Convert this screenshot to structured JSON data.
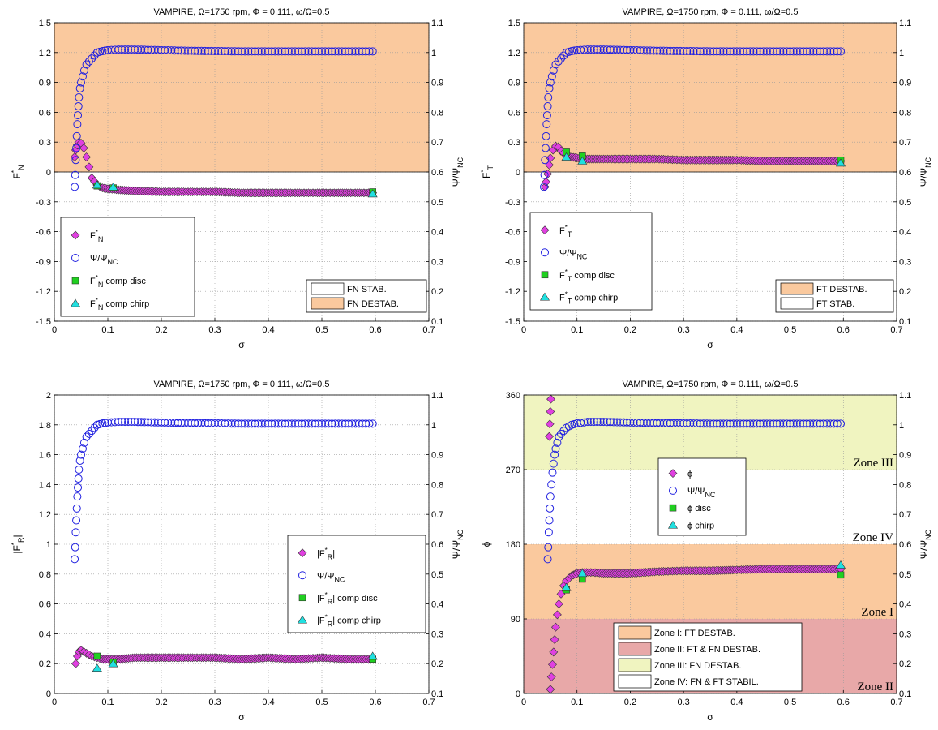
{
  "chart_data": [
    {
      "type": "scatter",
      "title": "VAMPIRE, Ω=1750 rpm, Φ = 0.111, ω/Ω=0.5",
      "xlabel": "σ",
      "ylabel": "F*N",
      "y2label": "Ψ/ΨNC",
      "xlim": [
        0,
        0.7
      ],
      "ylim": [
        -1.5,
        1.5
      ],
      "y2lim": [
        0.1,
        1.1
      ],
      "xticks": [
        "0",
        "0.1",
        "0.2",
        "0.3",
        "0.4",
        "0.5",
        "0.6",
        "0.7"
      ],
      "yticks": [
        "-1.5",
        "-1.2",
        "-0.9",
        "-0.6",
        "-0.3",
        "0",
        "0.3",
        "0.6",
        "0.9",
        "1.2",
        "1.5"
      ],
      "y2ticks": [
        "0.1",
        "0.2",
        "0.3",
        "0.4",
        "0.5",
        "0.6",
        "0.7",
        "0.8",
        "0.9",
        "1",
        "1.1"
      ],
      "grid": true,
      "regions": [
        {
          "label": "FN STAB.",
          "y_from": -1.5,
          "y_to": 0,
          "color": "#ffffff"
        },
        {
          "label": "FN DESTAB.",
          "y_from": 0,
          "y_to": 1.5,
          "color": "#fac99e"
        }
      ],
      "region_legend_placement": "bottom-right",
      "legend_placement": "bottom-left",
      "series": [
        {
          "name": "F*N",
          "marker": "diamond",
          "color": "#e040e0",
          "axis": "left",
          "x": [
            0.038,
            0.04,
            0.043,
            0.046,
            0.05,
            0.055,
            0.06,
            0.065,
            0.07,
            0.08,
            0.09,
            0.1,
            0.12,
            0.15,
            0.2,
            0.25,
            0.3,
            0.35,
            0.4,
            0.45,
            0.5,
            0.55,
            0.595
          ],
          "y": [
            0.15,
            0.22,
            0.27,
            0.3,
            0.29,
            0.24,
            0.15,
            0.05,
            -0.06,
            -0.13,
            -0.16,
            -0.17,
            -0.18,
            -0.19,
            -0.2,
            -0.2,
            -0.2,
            -0.21,
            -0.21,
            -0.21,
            -0.21,
            -0.21,
            -0.21
          ]
        },
        {
          "name": "Ψ/ΨNC",
          "marker": "circle",
          "color": "#2020e0",
          "axis": "right",
          "x": [
            0.038,
            0.039,
            0.04,
            0.041,
            0.042,
            0.043,
            0.044,
            0.045,
            0.046,
            0.048,
            0.05,
            0.053,
            0.056,
            0.06,
            0.065,
            0.07,
            0.075,
            0.08,
            0.09,
            0.1,
            0.12,
            0.15,
            0.2,
            0.25,
            0.3,
            0.35,
            0.4,
            0.45,
            0.5,
            0.55,
            0.595
          ],
          "y": [
            0.55,
            0.59,
            0.64,
            0.68,
            0.72,
            0.76,
            0.79,
            0.82,
            0.85,
            0.88,
            0.9,
            0.92,
            0.94,
            0.96,
            0.97,
            0.98,
            0.99,
            1.0,
            1.005,
            1.008,
            1.01,
            1.01,
            1.008,
            1.006,
            1.005,
            1.004,
            1.004,
            1.004,
            1.004,
            1.004,
            1.004
          ]
        },
        {
          "name": "F*N comp disc",
          "marker": "square",
          "color": "#20d020",
          "axis": "left",
          "x": [
            0.08,
            0.11,
            0.595
          ],
          "y": [
            -0.14,
            -0.16,
            -0.2
          ]
        },
        {
          "name": "F*N comp chirp",
          "marker": "triangle",
          "color": "#20e0e0",
          "axis": "left",
          "x": [
            0.08,
            0.11,
            0.595
          ],
          "y": [
            -0.13,
            -0.15,
            -0.22
          ]
        }
      ]
    },
    {
      "type": "scatter",
      "title": "VAMPIRE, Ω=1750 rpm, Φ = 0.111, ω/Ω=0.5",
      "xlabel": "σ",
      "ylabel": "F*T",
      "y2label": "Ψ/ΨNC",
      "xlim": [
        0,
        0.7
      ],
      "ylim": [
        -1.5,
        1.5
      ],
      "y2lim": [
        0.1,
        1.1
      ],
      "xticks": [
        "0",
        "0.1",
        "0.2",
        "0.3",
        "0.4",
        "0.5",
        "0.6",
        "0.7"
      ],
      "yticks": [
        "-1.5",
        "-1.2",
        "-0.9",
        "-0.6",
        "-0.3",
        "0",
        "0.3",
        "0.6",
        "0.9",
        "1.2",
        "1.5"
      ],
      "y2ticks": [
        "0.1",
        "0.2",
        "0.3",
        "0.4",
        "0.5",
        "0.6",
        "0.7",
        "0.8",
        "0.9",
        "1",
        "1.1"
      ],
      "grid": true,
      "regions": [
        {
          "label": "FT DESTAB.",
          "y_from": 0,
          "y_to": 1.5,
          "color": "#fac99e"
        },
        {
          "label": "FT STAB.",
          "y_from": -1.5,
          "y_to": 0,
          "color": "#ffffff"
        }
      ],
      "region_legend_placement": "bottom-right",
      "legend_placement": "bottom-left",
      "series": [
        {
          "name": "F*T",
          "marker": "diamond",
          "color": "#e040e0",
          "axis": "left",
          "x": [
            0.04,
            0.042,
            0.045,
            0.048,
            0.05,
            0.055,
            0.06,
            0.065,
            0.07,
            0.08,
            0.09,
            0.1,
            0.12,
            0.15,
            0.2,
            0.25,
            0.3,
            0.35,
            0.4,
            0.45,
            0.5,
            0.55,
            0.595
          ],
          "y": [
            -0.15,
            -0.1,
            -0.02,
            0.07,
            0.14,
            0.22,
            0.26,
            0.25,
            0.21,
            0.17,
            0.15,
            0.14,
            0.13,
            0.13,
            0.13,
            0.13,
            0.12,
            0.12,
            0.12,
            0.11,
            0.11,
            0.11,
            0.11
          ]
        },
        {
          "name": "Ψ/ΨNC",
          "marker": "circle",
          "color": "#2020e0",
          "axis": "right",
          "x": [
            0.038,
            0.039,
            0.04,
            0.041,
            0.042,
            0.043,
            0.044,
            0.045,
            0.046,
            0.048,
            0.05,
            0.053,
            0.056,
            0.06,
            0.065,
            0.07,
            0.075,
            0.08,
            0.09,
            0.1,
            0.12,
            0.15,
            0.2,
            0.25,
            0.3,
            0.35,
            0.4,
            0.45,
            0.5,
            0.55,
            0.595
          ],
          "y": [
            0.55,
            0.59,
            0.64,
            0.68,
            0.72,
            0.76,
            0.79,
            0.82,
            0.85,
            0.88,
            0.9,
            0.92,
            0.94,
            0.96,
            0.97,
            0.98,
            0.99,
            1.0,
            1.005,
            1.008,
            1.01,
            1.01,
            1.008,
            1.006,
            1.005,
            1.004,
            1.004,
            1.004,
            1.004,
            1.004,
            1.004
          ]
        },
        {
          "name": "F*T comp disc",
          "marker": "square",
          "color": "#20d020",
          "axis": "left",
          "x": [
            0.08,
            0.11,
            0.595
          ],
          "y": [
            0.2,
            0.16,
            0.12
          ]
        },
        {
          "name": "F*T comp chirp",
          "marker": "triangle",
          "color": "#20e0e0",
          "axis": "left",
          "x": [
            0.08,
            0.11,
            0.595
          ],
          "y": [
            0.15,
            0.11,
            0.09
          ]
        }
      ]
    },
    {
      "type": "scatter",
      "title": "VAMPIRE, Ω=1750 rpm, Φ = 0.111, ω/Ω=0.5",
      "xlabel": "σ",
      "ylabel": "|F*R|",
      "y2label": "Ψ/ΨNC",
      "xlim": [
        0,
        0.7
      ],
      "ylim": [
        0,
        2
      ],
      "y2lim": [
        0.1,
        1.1
      ],
      "xticks": [
        "0",
        "0.1",
        "0.2",
        "0.3",
        "0.4",
        "0.5",
        "0.6",
        "0.7"
      ],
      "yticks": [
        "0",
        "0.2",
        "0.4",
        "0.6",
        "0.8",
        "1",
        "1.2",
        "1.4",
        "1.6",
        "1.8",
        "2"
      ],
      "y2ticks": [
        "0.1",
        "0.2",
        "0.3",
        "0.4",
        "0.5",
        "0.6",
        "0.7",
        "0.8",
        "0.9",
        "1",
        "1.1"
      ],
      "grid": true,
      "legend_placement": "bottom-right",
      "series": [
        {
          "name": "|F*R|",
          "marker": "diamond",
          "color": "#e040e0",
          "axis": "left",
          "x": [
            0.04,
            0.043,
            0.046,
            0.05,
            0.055,
            0.06,
            0.065,
            0.07,
            0.08,
            0.09,
            0.1,
            0.12,
            0.15,
            0.2,
            0.25,
            0.3,
            0.35,
            0.4,
            0.45,
            0.5,
            0.55,
            0.595
          ],
          "y": [
            0.2,
            0.25,
            0.28,
            0.29,
            0.28,
            0.27,
            0.26,
            0.25,
            0.24,
            0.23,
            0.23,
            0.23,
            0.24,
            0.24,
            0.24,
            0.24,
            0.23,
            0.24,
            0.23,
            0.24,
            0.23,
            0.23
          ]
        },
        {
          "name": "Ψ/ΨNC",
          "marker": "circle",
          "color": "#2020e0",
          "axis": "right",
          "x": [
            0.038,
            0.039,
            0.04,
            0.041,
            0.042,
            0.043,
            0.044,
            0.045,
            0.046,
            0.048,
            0.05,
            0.053,
            0.056,
            0.06,
            0.065,
            0.07,
            0.075,
            0.08,
            0.09,
            0.1,
            0.12,
            0.15,
            0.2,
            0.25,
            0.3,
            0.35,
            0.4,
            0.45,
            0.5,
            0.55,
            0.595
          ],
          "y": [
            0.55,
            0.59,
            0.64,
            0.68,
            0.72,
            0.76,
            0.79,
            0.82,
            0.85,
            0.88,
            0.9,
            0.92,
            0.94,
            0.96,
            0.97,
            0.98,
            0.99,
            1.0,
            1.005,
            1.008,
            1.01,
            1.01,
            1.008,
            1.006,
            1.005,
            1.004,
            1.004,
            1.004,
            1.004,
            1.004,
            1.004
          ]
        },
        {
          "name": "|F*R| comp disc",
          "marker": "square",
          "color": "#20d020",
          "axis": "left",
          "x": [
            0.08,
            0.11,
            0.595
          ],
          "y": [
            0.25,
            0.21,
            0.23
          ]
        },
        {
          "name": "|F*R| comp chirp",
          "marker": "triangle",
          "color": "#20e0e0",
          "axis": "left",
          "x": [
            0.08,
            0.11,
            0.595
          ],
          "y": [
            0.17,
            0.2,
            0.25
          ]
        }
      ]
    },
    {
      "type": "scatter",
      "title": "VAMPIRE, Ω=1750 rpm, Φ = 0.111, ω/Ω=0.5",
      "xlabel": "σ",
      "ylabel": "ϕ",
      "y2label": "Ψ/ΨNC",
      "xlim": [
        0,
        0.7
      ],
      "ylim": [
        0,
        360
      ],
      "y2lim": [
        0.1,
        1.1
      ],
      "xticks": [
        "0",
        "0.1",
        "0.2",
        "0.3",
        "0.4",
        "0.5",
        "0.6",
        "0.7"
      ],
      "yticks": [
        "0",
        "90",
        "180",
        "270",
        "360"
      ],
      "y2ticks": [
        "0.1",
        "0.2",
        "0.3",
        "0.4",
        "0.5",
        "0.6",
        "0.7",
        "0.8",
        "0.9",
        "1",
        "1.1"
      ],
      "grid": true,
      "regions": [
        {
          "label": "Zone I: FT DESTAB.",
          "tag": "Zone I",
          "y_from": 90,
          "y_to": 180,
          "color": "#fac99e"
        },
        {
          "label": "Zone II: FT & FN DESTAB.",
          "tag": "Zone II",
          "y_from": 0,
          "y_to": 90,
          "color": "#e8a8a8"
        },
        {
          "label": "Zone III: FN DESTAB.",
          "tag": "Zone III",
          "y_from": 270,
          "y_to": 360,
          "color": "#f0f4c0"
        },
        {
          "label": "Zone IV: FN & FT STABIL.",
          "tag": "Zone IV",
          "y_from": 180,
          "y_to": 270,
          "color": "#ffffff"
        }
      ],
      "region_legend_placement": "bottom-center",
      "legend_placement": "center",
      "series": [
        {
          "name": "ϕ",
          "marker": "diamond",
          "color": "#e040e0",
          "axis": "left",
          "x": [
            0.048,
            0.049,
            0.05,
            0.051,
            0.05,
            0.052,
            0.054,
            0.056,
            0.058,
            0.06,
            0.063,
            0.066,
            0.07,
            0.075,
            0.08,
            0.09,
            0.1,
            0.11,
            0.13,
            0.15,
            0.2,
            0.25,
            0.3,
            0.35,
            0.4,
            0.45,
            0.5,
            0.55,
            0.595
          ],
          "y": [
            310,
            325,
            340,
            355,
            5,
            20,
            35,
            50,
            65,
            80,
            95,
            108,
            120,
            130,
            136,
            142,
            145,
            146,
            146,
            145,
            145,
            147,
            148,
            148,
            149,
            150,
            150,
            150,
            150
          ]
        },
        {
          "name": "Ψ/ΨNC",
          "marker": "circle",
          "color": "#2020e0",
          "axis": "right",
          "x": [
            0.045,
            0.046,
            0.047,
            0.048,
            0.049,
            0.05,
            0.052,
            0.054,
            0.056,
            0.058,
            0.06,
            0.063,
            0.066,
            0.07,
            0.075,
            0.08,
            0.09,
            0.1,
            0.12,
            0.15,
            0.2,
            0.25,
            0.3,
            0.35,
            0.4,
            0.45,
            0.5,
            0.55,
            0.595
          ],
          "y": [
            0.55,
            0.59,
            0.64,
            0.68,
            0.72,
            0.76,
            0.8,
            0.84,
            0.87,
            0.9,
            0.92,
            0.94,
            0.96,
            0.97,
            0.98,
            0.99,
            1.0,
            1.005,
            1.01,
            1.01,
            1.008,
            1.006,
            1.005,
            1.004,
            1.004,
            1.004,
            1.004,
            1.004,
            1.004
          ]
        },
        {
          "name": "ϕ disc",
          "marker": "square",
          "color": "#20d020",
          "axis": "left",
          "x": [
            0.08,
            0.11,
            0.595
          ],
          "y": [
            125,
            138,
            143
          ]
        },
        {
          "name": "ϕ chirp",
          "marker": "triangle",
          "color": "#20e0e0",
          "axis": "left",
          "x": [
            0.08,
            0.11,
            0.595
          ],
          "y": [
            128,
            145,
            155
          ]
        }
      ]
    }
  ]
}
